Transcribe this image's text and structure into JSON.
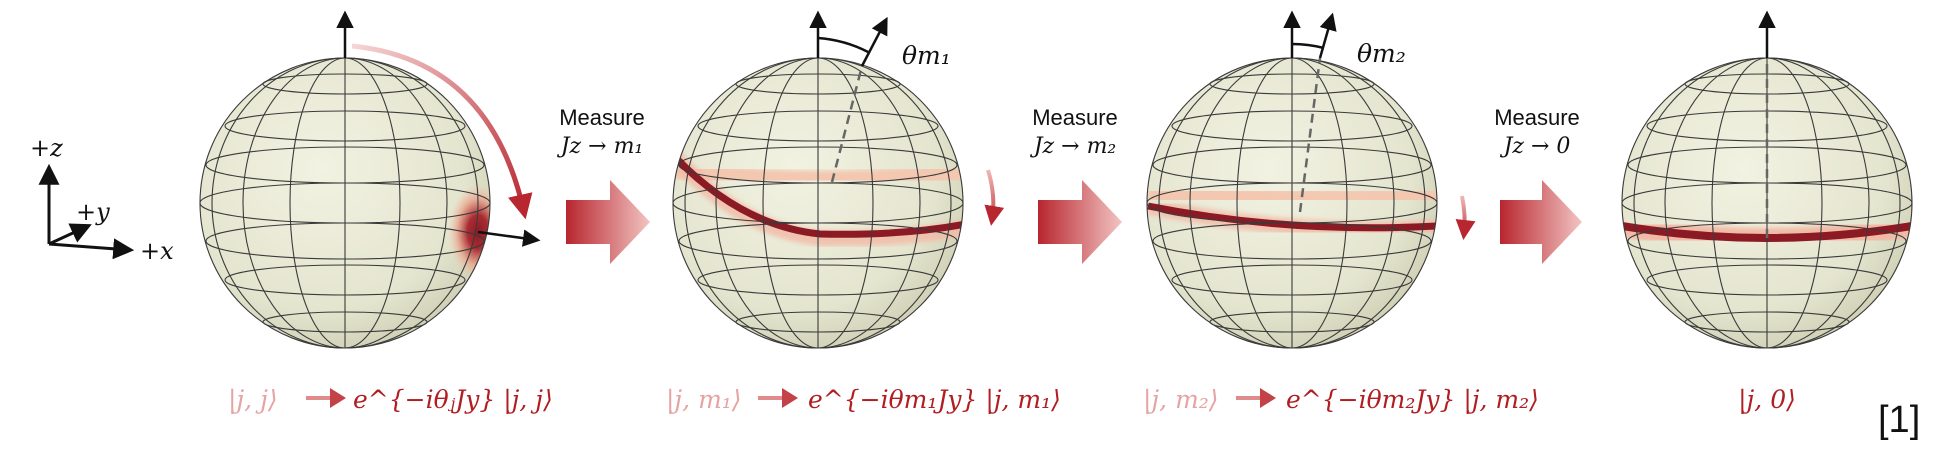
{
  "colors": {
    "sphere_fill": "#e9ead6",
    "band_dark": "#8c1a24",
    "band_light": "#f3c7b0",
    "arrow_red": "#b8262f",
    "caption_faded": "#e6a3a3",
    "caption_red": "#b01e22"
  },
  "axes": {
    "z": "+z",
    "y": "+y",
    "x": "+x"
  },
  "angles": {
    "theta_m1": "θm₁",
    "theta_m2": "θm₂"
  },
  "steps": [
    {
      "measure": "Measure",
      "op": "Jz → m₁",
      "icon": "big-red-arrow"
    },
    {
      "measure": "Measure",
      "op": "Jz → m₂",
      "icon": "big-red-arrow"
    },
    {
      "measure": "Measure",
      "op": "Jz → 0",
      "icon": "big-red-arrow"
    }
  ],
  "captions": [
    {
      "from": "|j, j⟩",
      "to": "e^{−iθⱼJy} |j, j⟩"
    },
    {
      "from": "|j, m₁⟩",
      "to": "e^{−iθm₁Jy} |j, m₁⟩"
    },
    {
      "from": "|j, m₂⟩",
      "to": "e^{−iθm₂Jy} |j, m₂⟩"
    },
    {
      "from": "",
      "to": "|j, 0⟩"
    }
  ],
  "reference": "[1]"
}
